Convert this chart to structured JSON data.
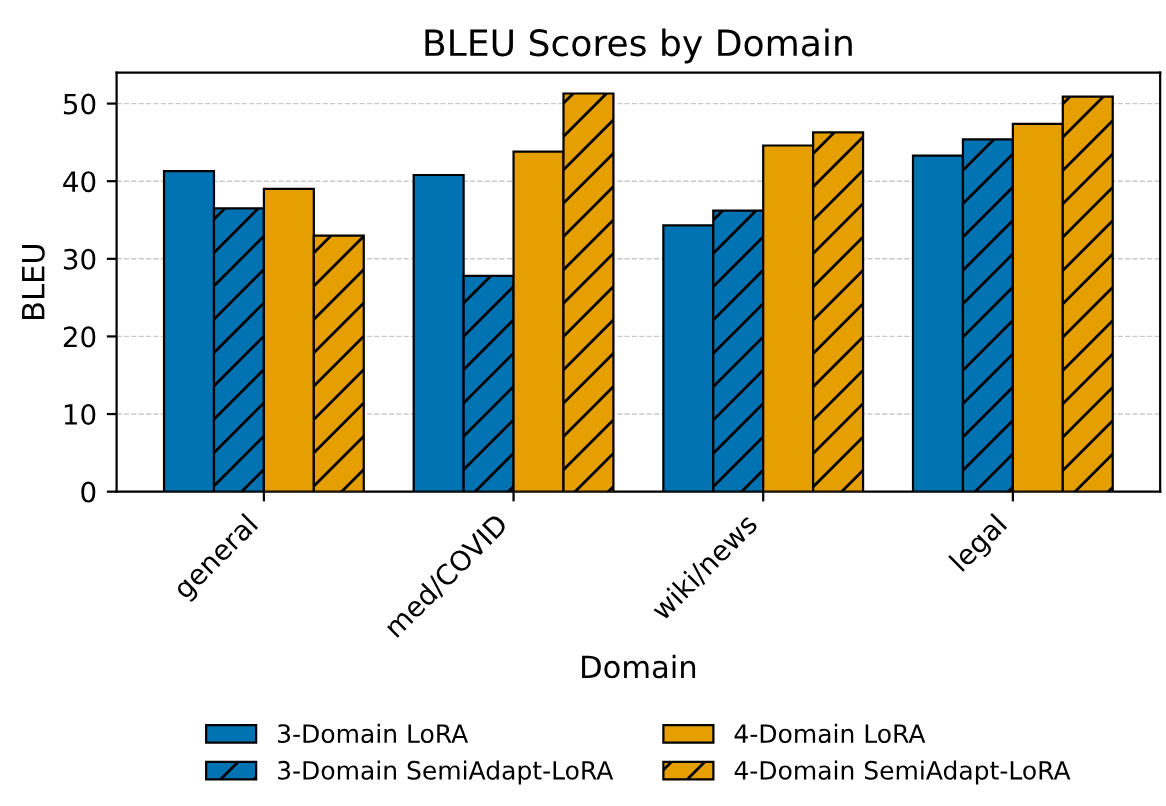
{
  "chart_data": {
    "type": "bar",
    "title": "BLEU Scores by Domain",
    "xlabel": "Domain",
    "ylabel": "BLEU",
    "categories": [
      "general",
      "med/COVID",
      "wiki/news",
      "legal"
    ],
    "series": [
      {
        "name": "3-Domain LoRA",
        "color": "#0173b2",
        "values": [
          41.3,
          40.8,
          34.3,
          43.3
        ]
      },
      {
        "name": "3-Domain SemiAdapt-LoRA",
        "color": "#0173b2",
        "values": [
          36.5,
          27.8,
          36.2,
          45.4
        ]
      },
      {
        "name": "4-Domain LoRA",
        "color": "#e69f00",
        "values": [
          39.0,
          43.8,
          44.6,
          47.4
        ]
      },
      {
        "name": "4-Domain SemiAdapt-LoRA",
        "color": "#e69f00",
        "values": [
          33.0,
          51.3,
          46.3,
          50.9
        ]
      }
    ],
    "ylim": [
      0,
      54
    ],
    "yticks": [
      0,
      10,
      20,
      30,
      40,
      50
    ],
    "grid": "y",
    "legend": "bottom"
  }
}
